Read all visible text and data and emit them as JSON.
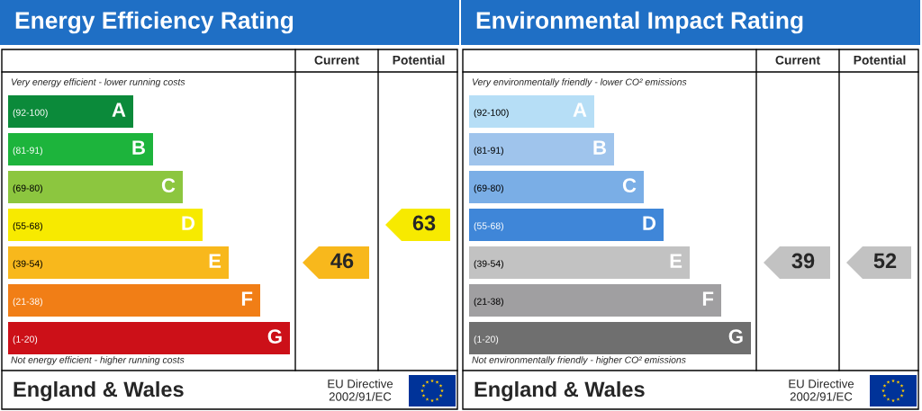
{
  "chart_data": [
    {
      "type": "other",
      "data_labels": true,
      "title": "Energy Efficiency Rating",
      "categories": [
        "A",
        "B",
        "C",
        "D",
        "E",
        "F",
        "G"
      ],
      "value_labels": [
        "(92-100)",
        "(81-91)",
        "(69-80)",
        "(55-68)",
        "(39-54)",
        "(21-38)",
        "(1-20)"
      ],
      "colors": [
        "#0b8a3a",
        "#1db43c",
        "#8cc63f",
        "#f7ea00",
        "#f8b81c",
        "#f17e16",
        "#cc1018"
      ],
      "series": [
        {
          "values": [
            null,
            null,
            null,
            null,
            46,
            null,
            null
          ]
        },
        {
          "values": [
            null,
            null,
            null,
            63,
            null,
            null,
            null
          ]
        }
      ],
      "annotations": [
        "Very energy efficient - lower running costs",
        "Not energy efficient - higher running costs",
        "England & Wales",
        "EU Directive\n2002/91/EC",
        "Current",
        "Potential"
      ]
    },
    {
      "type": "other",
      "data_labels": true,
      "title": "Environmental Impact Rating",
      "categories": [
        "A",
        "B",
        "C",
        "D",
        "E",
        "F",
        "G"
      ],
      "value_labels": [
        "(92-100)",
        "(81-91)",
        "(69-80)",
        "(55-68)",
        "(39-54)",
        "(21-38)",
        "(1-20)"
      ],
      "colors": [
        "#b6def6",
        "#9fc4ec",
        "#7aaee6",
        "#3f86d8",
        "#c2c2c2",
        "#a09fa1",
        "#6f6f6f"
      ],
      "series": [
        {
          "values": [
            null,
            null,
            null,
            null,
            39,
            null,
            null
          ]
        },
        {
          "values": [
            null,
            null,
            null,
            null,
            52,
            null,
            null
          ]
        }
      ],
      "annotations": [
        "Very environmentally friendly - lower CO² emissions",
        "Not environmentally friendly - higher CO² emissions",
        "England & Wales",
        "EU Directive\n2002/91/EC",
        "Current",
        "Potential"
      ]
    }
  ]
}
